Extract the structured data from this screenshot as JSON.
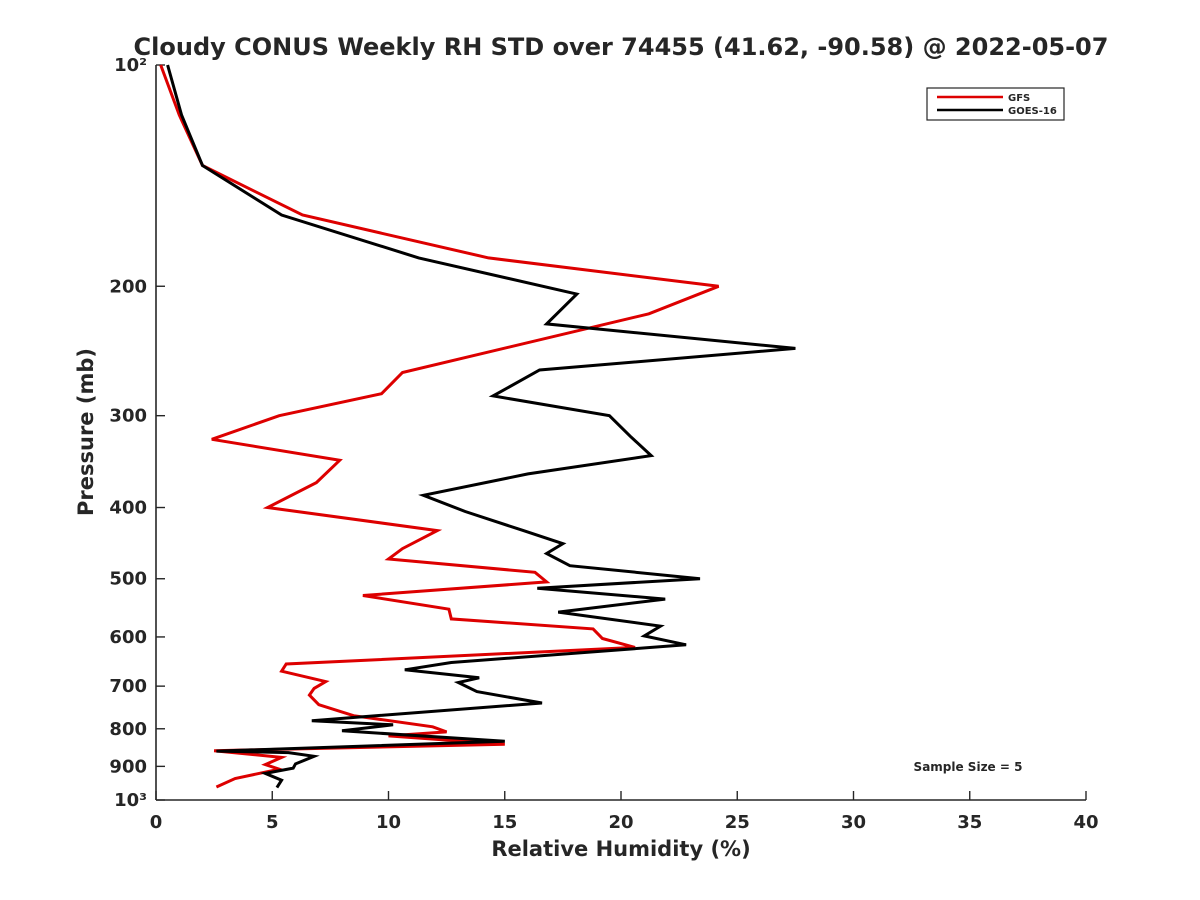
{
  "chart_data": {
    "type": "line",
    "title": "Cloudy CONUS Weekly RH STD over 74455 (41.62, -90.58) @ 2022-05-07",
    "xlabel": "Relative Humidity (%)",
    "ylabel": "Pressure (mb)",
    "xlim": [
      0,
      40
    ],
    "ylim": [
      100,
      1000
    ],
    "y_scale": "log",
    "y_reversed": true,
    "grid": false,
    "legend_position": "top-right",
    "x_ticks": [
      0,
      5,
      10,
      15,
      20,
      25,
      30,
      35,
      40
    ],
    "x_tick_labels": [
      "0",
      "5",
      "10",
      "15",
      "20",
      "25",
      "30",
      "35",
      "40"
    ],
    "y_ticks": [
      100,
      200,
      300,
      400,
      500,
      600,
      700,
      800,
      900,
      1000
    ],
    "y_tick_labels": [
      "10²",
      "200",
      "300",
      "400",
      "500",
      "600",
      "700",
      "800",
      "900",
      "10³"
    ],
    "annotation": "Sample Size = 5",
    "series": [
      {
        "name": "GFS",
        "color": "#dd0000",
        "x": [
          0.2,
          1.0,
          2.0,
          6.3,
          14.3,
          24.2,
          21.2,
          10.6,
          9.7,
          5.3,
          2.4,
          7.9,
          6.9,
          4.8,
          12.1,
          10.6,
          10.0,
          16.3,
          16.8,
          8.9,
          12.6,
          12.7,
          18.8,
          19.2,
          20.6,
          5.6,
          5.4,
          7.3,
          6.8,
          6.6,
          7.0,
          8.5,
          11.9,
          12.5,
          10.0,
          15.0,
          2.5,
          5.4,
          4.7,
          5.3,
          3.4,
          2.6
        ],
        "y": [
          100,
          117,
          137,
          160,
          183,
          200,
          218,
          262,
          280,
          300,
          323,
          345,
          370,
          400,
          430,
          455,
          470,
          490,
          505,
          527,
          550,
          567,
          585,
          603,
          620,
          653,
          668,
          690,
          705,
          720,
          742,
          768,
          795,
          808,
          818,
          840,
          857,
          875,
          895,
          908,
          935,
          960
        ]
      },
      {
        "name": "GOES-16",
        "color": "#000000",
        "x": [
          0.5,
          1.1,
          2.0,
          5.4,
          11.3,
          18.1,
          16.8,
          27.5,
          16.5,
          14.5,
          19.5,
          20.4,
          21.3,
          16.0,
          11.5,
          13.3,
          15.8,
          17.5,
          16.8,
          17.8,
          23.4,
          16.4,
          21.9,
          17.3,
          21.7,
          21.0,
          22.8,
          12.7,
          10.7,
          13.9,
          13.0,
          13.8,
          16.6,
          6.7,
          10.2,
          8.0,
          15.0,
          2.6,
          5.7,
          6.8,
          6.0,
          5.9,
          4.7,
          5.4,
          5.2
        ],
        "y": [
          100,
          117,
          137,
          160,
          183,
          205,
          225,
          243,
          260,
          282,
          300,
          320,
          340,
          360,
          385,
          405,
          430,
          448,
          462,
          480,
          500,
          515,
          533,
          555,
          580,
          598,
          615,
          650,
          665,
          682,
          692,
          712,
          738,
          780,
          790,
          805,
          832,
          858,
          862,
          872,
          893,
          905,
          920,
          940,
          962
        ]
      }
    ]
  }
}
